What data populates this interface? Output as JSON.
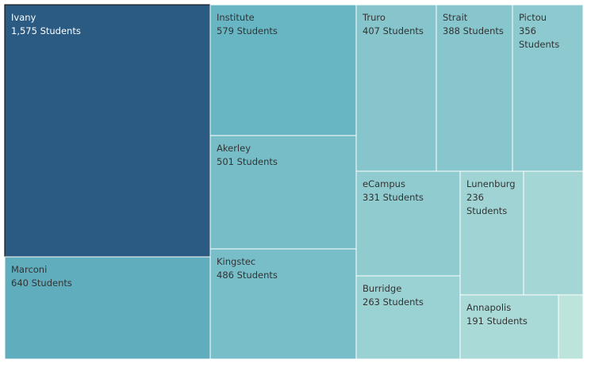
{
  "chart_data": {
    "type": "treemap",
    "unit_suffix": "Students",
    "nodes": [
      {
        "name": "Ivany",
        "value": 1575,
        "value_label": "1,575 Students",
        "color": "#2b5a83",
        "selected": true
      },
      {
        "name": "Marconi",
        "value": 640,
        "value_label": "640 Students",
        "color": "#5fadbd"
      },
      {
        "name": "Institute",
        "value": 579,
        "value_label": "579 Students",
        "color": "#68b6c4"
      },
      {
        "name": "Akerley",
        "value": 501,
        "value_label": "501 Students",
        "color": "#76bdc8"
      },
      {
        "name": "Kingstec",
        "value": 486,
        "value_label": "486 Students",
        "color": "#78bec9"
      },
      {
        "name": "Truro",
        "value": 407,
        "value_label": "407 Students",
        "color": "#86c5cc"
      },
      {
        "name": "Strait",
        "value": 388,
        "value_label": "388 Students",
        "color": "#88c6cd"
      },
      {
        "name": "Pictou",
        "value": 356,
        "value_label": "356 Students",
        "color": "#8ccacf"
      },
      {
        "name": "eCampus",
        "value": 331,
        "value_label": "331 Students",
        "color": "#8fcbcf"
      },
      {
        "name": "Burridge",
        "value": 263,
        "value_label": "263 Students",
        "color": "#9ad1d2"
      },
      {
        "name": "Lunenburg",
        "value": 236,
        "value_label": "236 Students",
        "color": "#a0d4d4"
      },
      {
        "name": "",
        "value": 215,
        "value_label": "",
        "color": "#a4d6d5"
      },
      {
        "name": "Annapolis",
        "value": 191,
        "value_label": "191 Students",
        "color": "#aadad7"
      },
      {
        "name": "",
        "value": 65,
        "value_label": "",
        "color": "#bce4db"
      }
    ]
  }
}
